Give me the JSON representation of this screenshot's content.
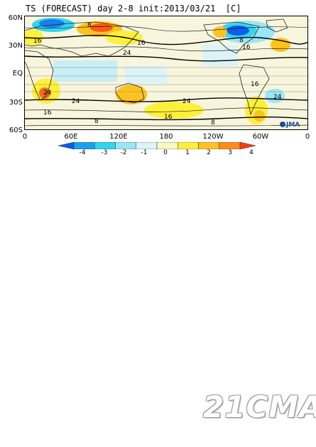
{
  "title": "TS (FORECAST) day 2-8 init:2013/03/21  [C]",
  "map": {
    "lat_labels": [
      "60N",
      "30N",
      "EQ",
      "30S",
      "60S"
    ],
    "lon_labels": [
      "0",
      "60E",
      "120E",
      "180",
      "120W",
      "60W",
      "0"
    ],
    "contour_labels": [
      "8",
      "16",
      "16",
      "24",
      "8",
      "16",
      "16",
      "24",
      "24",
      "16",
      "24",
      "24",
      "16",
      "8",
      "8"
    ],
    "logo_text": "JMA"
  },
  "colorbar": {
    "ticks": [
      "-4",
      "-3",
      "-2",
      "-1",
      "0",
      "1",
      "2",
      "3",
      "4"
    ],
    "colors": [
      "#0a5fe8",
      "#1ba0f0",
      "#33d4f0",
      "#9ae6f6",
      "#dcf4f8",
      "#fbf7c0",
      "#fdf03a",
      "#ffc21e",
      "#ff8a1c",
      "#ff3a10"
    ]
  },
  "watermark": "21CMA"
}
